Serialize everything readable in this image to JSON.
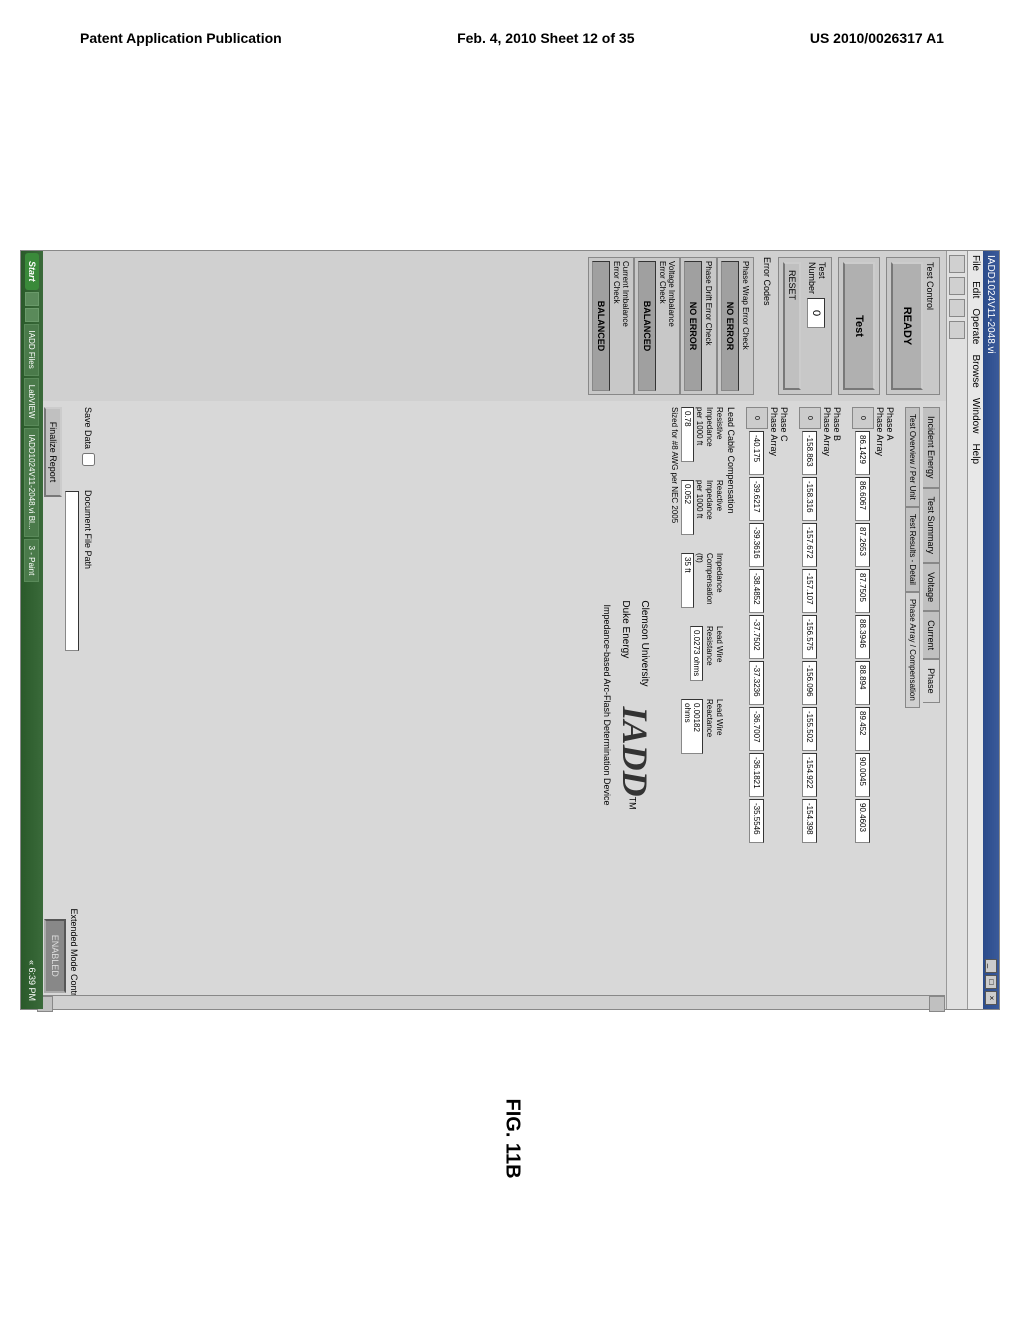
{
  "header": {
    "left": "Patent Application Publication",
    "center": "Feb. 4, 2010  Sheet 12 of 35",
    "right": "US 2010/0026317 A1"
  },
  "figure_label": "FIG. 11B",
  "window": {
    "title": "IADD1024V11-2048.vi",
    "menu": [
      "File",
      "Edit",
      "Operate",
      "Browse",
      "Window",
      "Help"
    ]
  },
  "left_panel": {
    "test_control": "Test Control",
    "ready": "READY",
    "test_btn": "Test",
    "test_number_label": "Test\nNumber",
    "test_number_val": "0",
    "reset": "RESET",
    "error_codes": "Error Codes",
    "errors": [
      {
        "title": "Phase Wrap Error Check",
        "status": "NO ERROR"
      },
      {
        "title": "Phase Drift Error Check",
        "status": "NO ERROR"
      },
      {
        "title": "Voltage Imbalance\nError Check",
        "status": "BALANCED"
      },
      {
        "title": "Current Imbalance\nError Check",
        "status": "BALANCED"
      }
    ]
  },
  "tabs": {
    "main": [
      "Incident Energy",
      "Test Summary",
      "Voltage",
      "Current",
      "Phase"
    ],
    "active_main": 4,
    "sub": [
      "Test Overview / Per Unit",
      "Test Results - Detail",
      "Phase Array / Compensation"
    ],
    "active_sub": 2
  },
  "phases": {
    "a": {
      "label": "Phase A\nPhase Array",
      "vals": [
        "86.1429",
        "86.6067",
        "87.2653",
        "87.7505",
        "88.3946",
        "88.894",
        "89.452",
        "90.0045",
        "90.4603"
      ]
    },
    "b": {
      "label": "Phase B\nPhase Array",
      "vals": [
        "-158.863",
        "-158.316",
        "-157.672",
        "-157.107",
        "-156.575",
        "-156.096",
        "-155.502",
        "-154.922",
        "-154.398"
      ]
    },
    "c": {
      "label": "Phase C\nPhase Array",
      "vals": [
        "-40.175",
        "-39.6217",
        "-39.3616",
        "-38.4852",
        "-37.7502",
        "-37.3236",
        "-36.7007",
        "-36.1821",
        "-35.5546"
      ]
    }
  },
  "lead": {
    "title": "Lead Cable Compensation",
    "cols": [
      {
        "l1": "Resistive",
        "l2": "Impedance",
        "l3": "per 1000 ft",
        "val": "0.78"
      },
      {
        "l1": "Reactive",
        "l2": "Impedance",
        "l3": "per 1000 ft",
        "val": "0.052"
      },
      {
        "l1": "Impedance",
        "l2": "Compensation",
        "l3": "(ft)",
        "val": "35 ft"
      },
      {
        "l1": "Lead Wire",
        "l2": "Resistance",
        "l3": "",
        "val": "0.0273 ohms"
      },
      {
        "l1": "Lead Wire",
        "l2": "Reactance",
        "l3": "",
        "val": "0.00182 ohms"
      }
    ],
    "note": "Sized for #8 AWG per NEC 2005"
  },
  "logo": {
    "left1": "Clemson University",
    "left2": "Duke Energy",
    "main": "IADD",
    "tm": "TM",
    "sub": "Impedance-based Arc-Flash Determination Device"
  },
  "bottom": {
    "save_label": "Save Data",
    "doc_path": "Document File Path",
    "finalize": "Finalize Report",
    "ext_mode": "Extended Mode Control",
    "enabled": "ENABLED"
  },
  "taskbar": {
    "start": "Start",
    "items": [
      "IADD Files",
      "LabVIEW",
      "IADD1024V11-2048.vi Bl...",
      "3 - Paint"
    ],
    "time": "6:39 PM"
  }
}
